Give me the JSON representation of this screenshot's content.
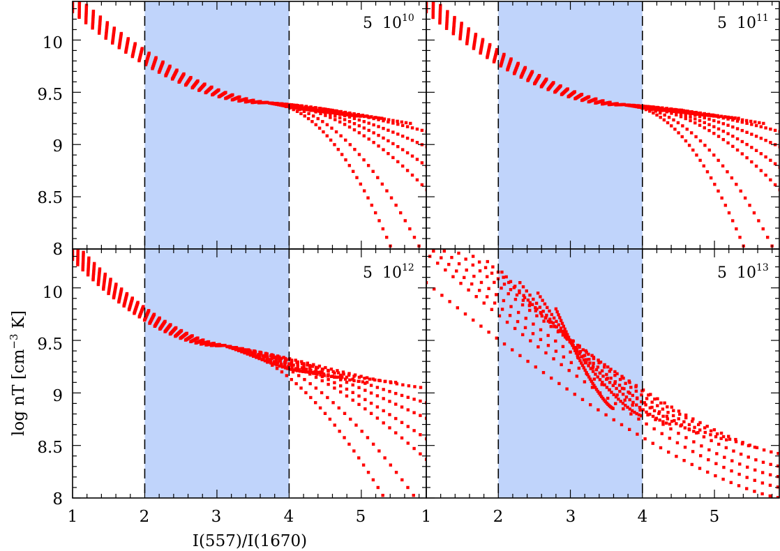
{
  "chart_data": {
    "type": "scatter",
    "xlabel": "I(557)/I(1670)",
    "ylabel": "log nT [cm",
    "ylabel_sup": "−3",
    "ylabel_tail": " K]",
    "xlim": [
      1,
      5.9
    ],
    "ylim": [
      8,
      10.37
    ],
    "x_ticks": [
      "1",
      "2",
      "3",
      "4",
      "5"
    ],
    "y_ticks_top": [
      "10",
      "9.5",
      "9",
      "8.5",
      "8"
    ],
    "y_ticks_bottom": [
      "8",
      "10",
      "9.5",
      "9",
      "8.5",
      "8"
    ],
    "marker_color": "#ff0000",
    "shaded_band": {
      "x_range": [
        2,
        4
      ],
      "color": "#c0d4fb",
      "edges": "dashed"
    },
    "panels": [
      {
        "label": "5  10",
        "label_exp": "10",
        "family": {
          "start": [
            1.0,
            10.37
          ],
          "pivot": [
            3.7,
            9.4
          ],
          "upper_end": [
            4.06,
            9.3
          ],
          "ends": [
            [
              5.42,
              8.0
            ],
            [
              5.82,
              8.0
            ],
            [
              5.93,
              8.55
            ],
            [
              5.93,
              8.78
            ],
            [
              5.93,
              8.97
            ],
            [
              5.93,
              9.12
            ],
            [
              5.7,
              9.2
            ],
            [
              5.3,
              9.25
            ],
            [
              5.0,
              9.27
            ],
            [
              4.75,
              9.3
            ],
            [
              4.55,
              9.33
            ]
          ]
        }
      },
      {
        "label": "5  10",
        "label_exp": "11",
        "family": {
          "start": [
            1.0,
            10.37
          ],
          "pivot": [
            3.75,
            9.38
          ],
          "upper_end": [
            4.1,
            9.3
          ],
          "ends": [
            [
              5.42,
              8.0
            ],
            [
              5.82,
              8.0
            ],
            [
              5.93,
              8.55
            ],
            [
              5.93,
              8.77
            ],
            [
              5.93,
              8.97
            ],
            [
              5.93,
              9.12
            ],
            [
              5.7,
              9.2
            ],
            [
              5.35,
              9.25
            ],
            [
              5.05,
              9.27
            ],
            [
              4.8,
              9.3
            ],
            [
              4.55,
              9.33
            ]
          ]
        }
      },
      {
        "label": "5  10",
        "label_exp": "12",
        "family": {
          "start": [
            1.0,
            10.37
          ],
          "pivot": [
            3.1,
            9.45
          ],
          "upper_end": [
            3.9,
            9.15
          ],
          "ends": [
            [
              5.32,
              8.0
            ],
            [
              5.75,
              8.0
            ],
            [
              5.93,
              8.35
            ],
            [
              5.93,
              8.55
            ],
            [
              5.93,
              8.75
            ],
            [
              5.93,
              8.9
            ],
            [
              5.85,
              9.05
            ],
            [
              5.5,
              9.1
            ],
            [
              5.1,
              9.1
            ],
            [
              4.75,
              9.15
            ],
            [
              4.45,
              9.2
            ]
          ]
        }
      },
      {
        "label": "5  10",
        "label_exp": "13",
        "family": {
          "start": [
            1.0,
            10.37
          ],
          "spread_start": [
            [
              1.0,
              10.05
            ],
            [
              1.05,
              10.3
            ],
            [
              1.1,
              10.35
            ],
            [
              1.25,
              10.35
            ],
            [
              1.45,
              10.33
            ],
            [
              1.65,
              10.3
            ],
            [
              1.85,
              10.25
            ],
            [
              2.05,
              10.15
            ],
            [
              2.3,
              10.05
            ],
            [
              2.55,
              9.95
            ],
            [
              2.8,
              9.8
            ]
          ],
          "ends": [
            [
              5.93,
              8.0
            ],
            [
              5.93,
              8.1
            ],
            [
              5.93,
              8.2
            ],
            [
              5.93,
              8.3
            ],
            [
              5.93,
              8.42
            ],
            [
              5.6,
              8.48
            ],
            [
              5.2,
              8.55
            ],
            [
              4.8,
              8.62
            ],
            [
              4.4,
              8.7
            ],
            [
              4.0,
              8.78
            ],
            [
              3.6,
              8.85
            ]
          ]
        }
      }
    ]
  }
}
